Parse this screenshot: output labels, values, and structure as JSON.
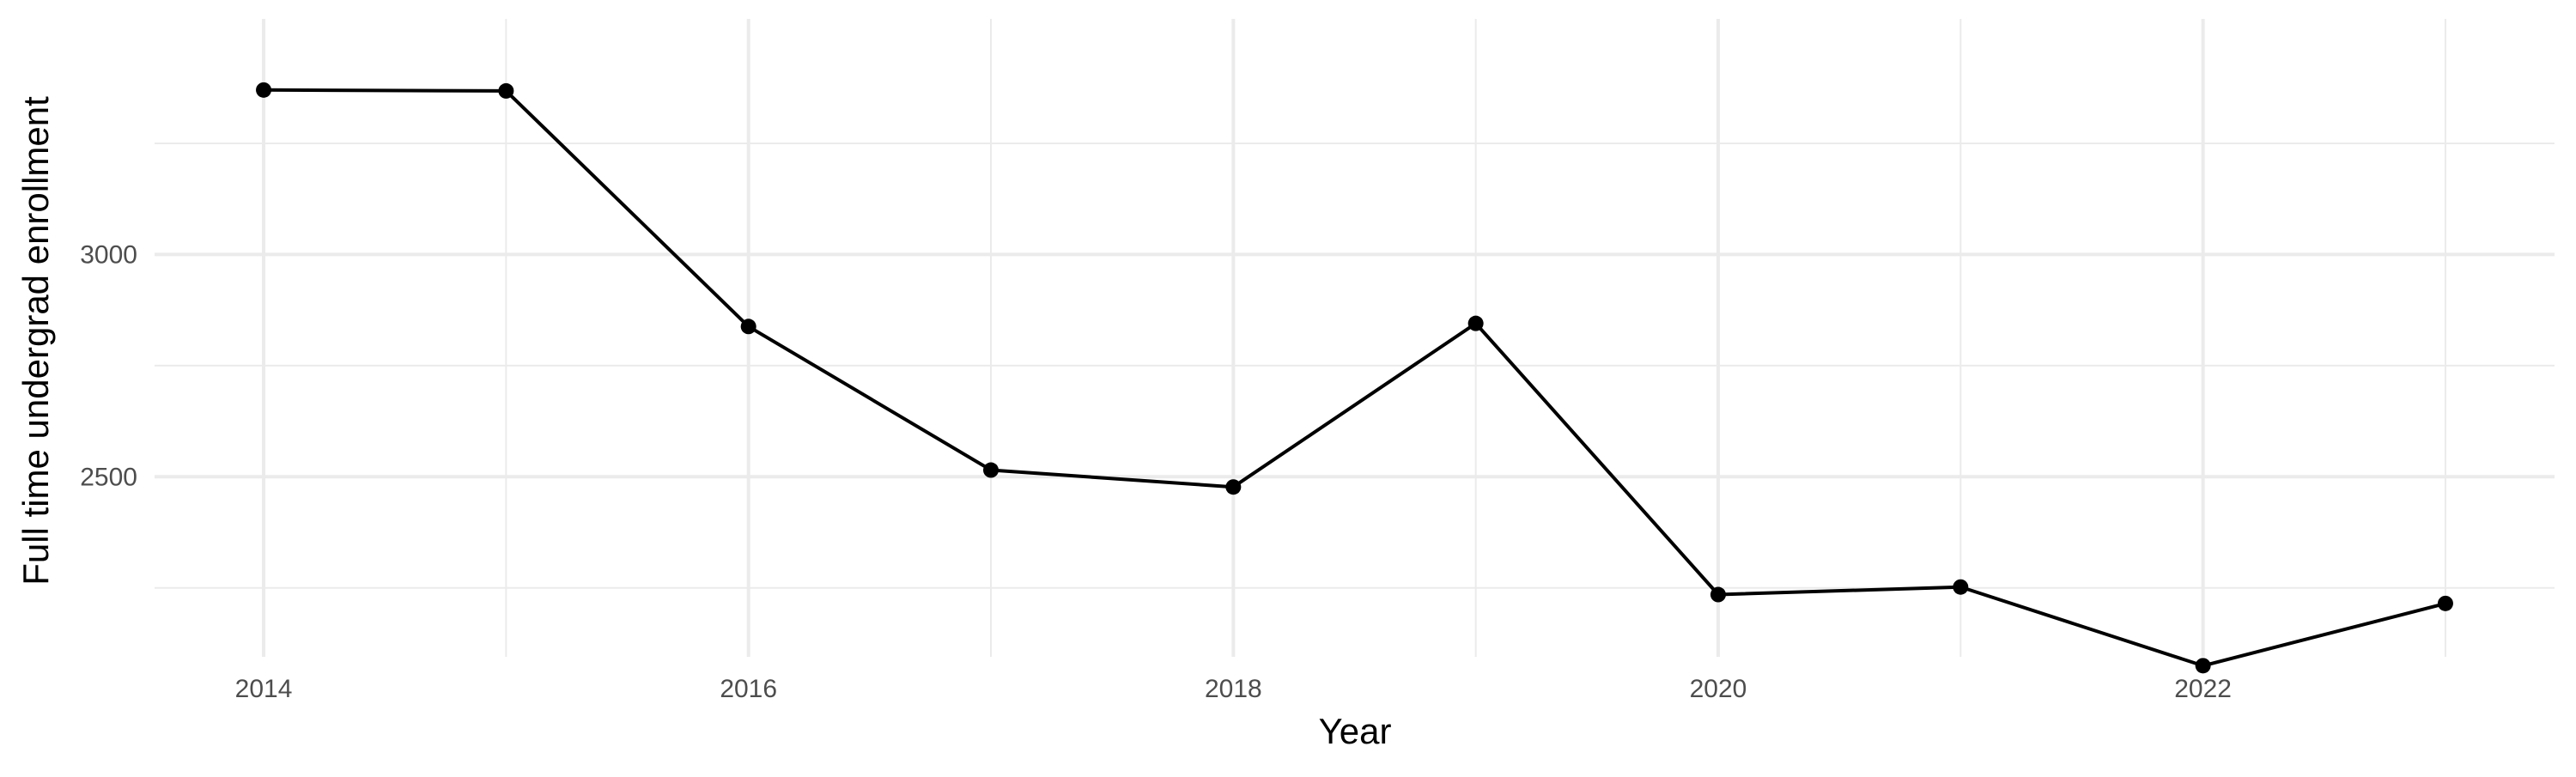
{
  "chart_data": {
    "type": "line",
    "title": "",
    "xlabel": "Year",
    "ylabel": "Full time undergrad enrollment",
    "xlim": [
      2013.55,
      2023.45
    ],
    "ylim": [
      2095,
      3530
    ],
    "x_ticks": [
      2014,
      2016,
      2018,
      2020,
      2022
    ],
    "y_ticks": [
      2500,
      3000
    ],
    "grid": true,
    "legend": "none",
    "series": [
      {
        "color": "#000000",
        "x": [
          2014,
          2015,
          2016,
          2017,
          2018,
          2019,
          2020,
          2021,
          2022,
          2023
        ],
        "y": [
          3370,
          3368,
          2838,
          2515,
          2477,
          2845,
          2235,
          2252,
          2075,
          2215
        ]
      }
    ]
  }
}
